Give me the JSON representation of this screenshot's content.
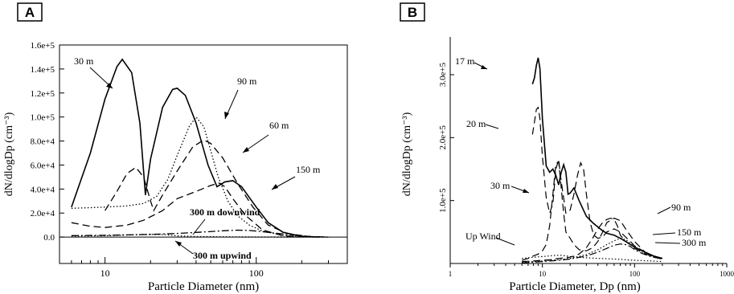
{
  "panels": [
    {
      "label": "A",
      "chart_data": {
        "type": "line",
        "xscale": "log",
        "xlabel": "Particle Diameter (nm)",
        "ylabel": "dN/dlogDp (cm⁻³)",
        "xlim": [
          5,
          400
        ],
        "ylim": [
          -22000,
          160000
        ],
        "x_ticks": [
          "10",
          "100"
        ],
        "y_ticks": [
          "0.0",
          "2.0e+4",
          "4.0e+4",
          "6.0e+4",
          "8.0e+4",
          "1.0e+5",
          "1.2e+5",
          "1.4e+5",
          "1.6e+5"
        ],
        "y_tick_values": [
          0,
          20000,
          40000,
          60000,
          80000,
          100000,
          120000,
          140000,
          160000
        ],
        "series": [
          {
            "name": "30 m",
            "style": "solid",
            "x": [
              6,
              8,
              10,
              12,
              13,
              15,
              17,
              18.5,
              20,
              24,
              28,
              30,
              34,
              40,
              48,
              55,
              62,
              70,
              80,
              100,
              120,
              150,
              200,
              260
            ],
            "y": [
              25000,
              70000,
              115000,
              142000,
              148000,
              137000,
              95000,
              35000,
              65000,
              108000,
              123000,
              124000,
              118000,
              95000,
              60000,
              42000,
              46000,
              47000,
              42000,
              25000,
              12000,
              4000,
              500,
              0
            ]
          },
          {
            "name": "60 m",
            "style": "dash",
            "x": [
              10,
              12,
              14,
              16,
              18,
              20,
              21,
              24,
              30,
              38,
              45,
              50,
              60,
              75,
              95,
              120,
              160,
              220,
              300
            ],
            "y": [
              22000,
              38000,
              53000,
              58000,
              50000,
              30000,
              22000,
              35000,
              55000,
              75000,
              81000,
              78000,
              66000,
              45000,
              25000,
              10000,
              3000,
              500,
              0
            ]
          },
          {
            "name": "90 m",
            "style": "dot",
            "x": [
              6,
              8,
              10,
              14,
              18,
              22,
              26,
              30,
              36,
              40,
              45,
              50,
              56,
              65,
              75,
              90,
              110,
              150,
              200
            ],
            "y": [
              24000,
              24500,
              25000,
              26000,
              28000,
              34000,
              48000,
              68000,
              92000,
              100000,
              92000,
              72000,
              50000,
              30000,
              18000,
              10000,
              5000,
              1500,
              0
            ]
          },
          {
            "name": "150 m",
            "style": "dash",
            "x": [
              6,
              8,
              10,
              14,
              18,
              24,
              30,
              40,
              50,
              57,
              62,
              70,
              85,
              110,
              150,
              220
            ],
            "y": [
              12000,
              9000,
              8000,
              10000,
              14000,
              22000,
              32000,
              38000,
              43000,
              45000,
              42000,
              32000,
              18000,
              6000,
              1000,
              0
            ]
          },
          {
            "name": "300 m downwind",
            "style": "dashdot",
            "x": [
              6,
              10,
              20,
              30,
              45,
              60,
              75,
              90,
              110,
              140,
              180,
              240,
              300
            ],
            "y": [
              1200,
              1500,
              2200,
              3000,
              4200,
              5200,
              5800,
              5500,
              4500,
              3000,
              1500,
              300,
              0
            ]
          },
          {
            "name": "300 m upwind",
            "style": "dot",
            "x": [
              6,
              10,
              15,
              20,
              25,
              30,
              40,
              60,
              100,
              200,
              300
            ],
            "y": [
              800,
              1100,
              1800,
              2200,
              2000,
              1000,
              400,
              200,
              100,
              0,
              0
            ]
          }
        ],
        "annotations": [
          "30 m",
          "90 m",
          "60 m",
          "150 m",
          "300 m downwind",
          "300 m upwind"
        ]
      }
    },
    {
      "label": "B",
      "chart_data": {
        "type": "line",
        "xscale": "log",
        "xlabel": "Particle Diameter, Dp (nm)",
        "ylabel": "dN/dlogDp (cm⁻³)",
        "xlim": [
          1,
          1000
        ],
        "ylim": [
          0,
          360000
        ],
        "x_ticks": [
          "1",
          "10",
          "100",
          "1000"
        ],
        "y_ticks": [
          "1.0e+5",
          "2.0e+5",
          "3.0e+5"
        ],
        "y_tick_values": [
          100000,
          200000,
          300000
        ],
        "series": [
          {
            "name": "17 m",
            "style": "solid",
            "x": [
              7.8,
              8.2,
              8.6,
              9.0,
              9.4,
              10,
              11,
              12,
              13,
              14,
              15,
              16,
              17,
              18,
              19,
              20,
              22,
              25,
              30,
              35,
              40,
              45,
              50,
              60,
              70,
              80,
              90,
              100,
              130,
              160,
              200
            ],
            "y": [
              285000,
              295000,
              315000,
              327000,
              310000,
              230000,
              155000,
              145000,
              150000,
              140000,
              125000,
              145000,
              157000,
              145000,
              110000,
              112000,
              120000,
              100000,
              75000,
              65000,
              58000,
              52000,
              48000,
              45000,
              40000,
              35000,
              30000,
              26000,
              18000,
              12000,
              8000
            ]
          },
          {
            "name": "20 m",
            "style": "dash",
            "x": [
              7.8,
              8.2,
              8.6,
              9.0,
              9.4,
              10,
              11,
              12,
              13,
              14,
              15,
              16,
              18,
              20,
              22,
              24,
              26,
              28,
              30,
              33,
              36,
              40,
              45,
              50,
              60,
              70,
              80,
              90,
              100,
              130,
              160,
              200
            ],
            "y": [
              205000,
              225000,
              245000,
              248000,
              230000,
              170000,
              105000,
              80000,
              95000,
              150000,
              165000,
              130000,
              80000,
              85000,
              110000,
              140000,
              160000,
              150000,
              110000,
              65000,
              45000,
              40000,
              42000,
              50000,
              55000,
              50000,
              42000,
              35000,
              28000,
              18000,
              12000,
              8000
            ]
          },
          {
            "name": "30 m",
            "style": "dash",
            "x": [
              6,
              7,
              8,
              9,
              10,
              11,
              12,
              13,
              14,
              15,
              16,
              17,
              18,
              20,
              22,
              25,
              30,
              35,
              40,
              45,
              50,
              60,
              70,
              80,
              100,
              130,
              200
            ],
            "y": [
              5000,
              8000,
              12000,
              15000,
              20000,
              30000,
              60000,
              110000,
              158000,
              162000,
              120000,
              80000,
              50000,
              40000,
              30000,
              22000,
              20000,
              25000,
              35000,
              50000,
              65000,
              72000,
              68000,
              55000,
              35000,
              18000,
              6000
            ]
          },
          {
            "name": "90 m",
            "style": "dash",
            "x": [
              6,
              8,
              10,
              12,
              15,
              20,
              25,
              30,
              35,
              40,
              45,
              50,
              55,
              60,
              65,
              70,
              80,
              90,
              100,
              120,
              150,
              200
            ],
            "y": [
              3000,
              4000,
              5000,
              6000,
              8000,
              10000,
              15000,
              25000,
              40000,
              55000,
              65000,
              70000,
              72000,
              70000,
              60000,
              45000,
              35000,
              30000,
              24000,
              18000,
              12000,
              7000
            ]
          },
          {
            "name": "150 m",
            "style": "dot",
            "x": [
              6,
              8,
              10,
              15,
              20,
              30,
              40,
              50,
              60,
              70,
              80,
              90,
              100,
              120,
              150,
              200
            ],
            "y": [
              2000,
              3000,
              4000,
              6000,
              8000,
              14000,
              22000,
              30000,
              36000,
              40000,
              38000,
              32000,
              26000,
              18000,
              12000,
              7000
            ]
          },
          {
            "name": "300 m",
            "style": "dashdot",
            "x": [
              6,
              8,
              10,
              15,
              20,
              30,
              40,
              50,
              60,
              70,
              80,
              90,
              100,
              120,
              150,
              200
            ],
            "y": [
              1000,
              2000,
              3000,
              5000,
              7000,
              12000,
              18000,
              24000,
              29000,
              31000,
              30000,
              27000,
              22000,
              16000,
              11000,
              7000
            ]
          },
          {
            "name": "Up Wind",
            "style": "dot",
            "x": [
              6,
              8,
              10,
              12,
              14,
              16,
              18,
              20,
              24,
              30,
              40,
              50,
              60,
              80,
              100,
              150,
              200
            ],
            "y": [
              8000,
              10000,
              11000,
              12000,
              13000,
              13000,
              12000,
              11000,
              10000,
              9000,
              8000,
              7500,
              7000,
              6000,
              5000,
              4000,
              3000
            ]
          }
        ],
        "annotations": [
          "17 m",
          "20 m",
          "30 m",
          "Up Wind",
          "90 m",
          "150 m",
          "300 m"
        ]
      }
    }
  ]
}
